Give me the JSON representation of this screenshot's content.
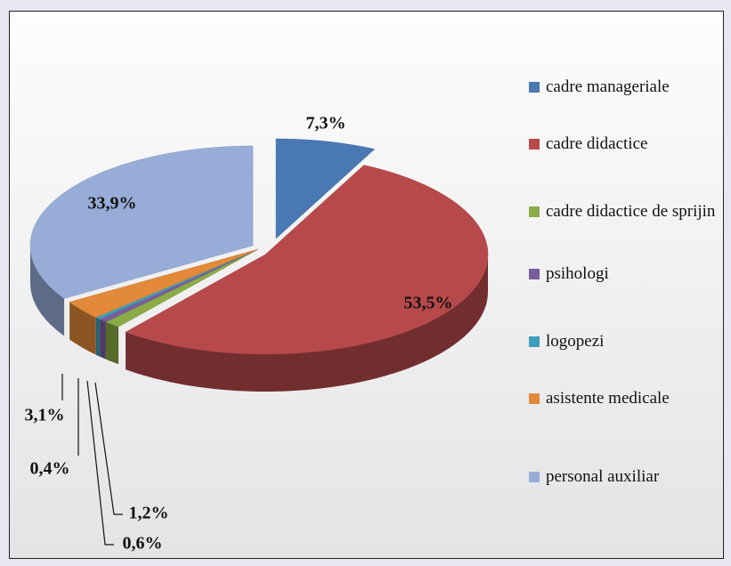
{
  "chart_data": {
    "type": "pie",
    "categories": [
      "cadre manageriale",
      "cadre didactice",
      "cadre didactice de sprijin",
      "psihologi",
      "logopezi",
      "asistente medicale",
      "personal auxiliar"
    ],
    "values": [
      7.3,
      53.5,
      1.2,
      0.6,
      0.4,
      3.1,
      33.9
    ],
    "value_labels": [
      "7,3%",
      "53,5%",
      "1,2%",
      "0,6%",
      "0,4%",
      "3,1%",
      "33,9%"
    ],
    "colors": [
      "#4a78b2",
      "#b8494a",
      "#8bab47",
      "#7a5d9c",
      "#3e9fba",
      "#e28a3a",
      "#97add8"
    ],
    "legend": "right"
  }
}
